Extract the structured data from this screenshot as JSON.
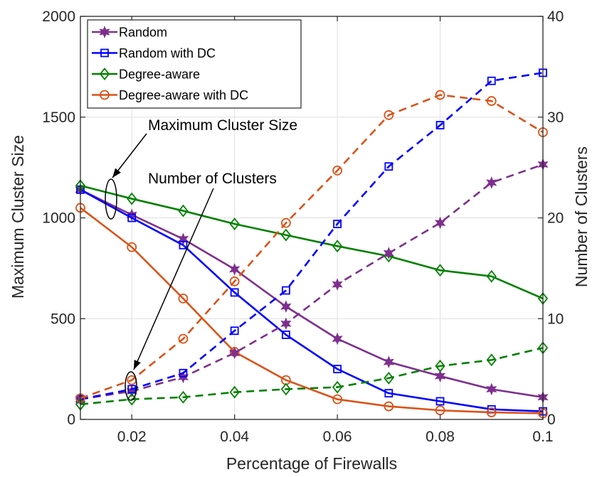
{
  "chart_data": {
    "type": "line",
    "xlabel": "Percentage of Firewalls",
    "ylabel_left": "Maximum Cluster Size",
    "ylabel_right": "Number of Clusters",
    "x": [
      0.01,
      0.02,
      0.03,
      0.04,
      0.05,
      0.06,
      0.07,
      0.08,
      0.09,
      0.1
    ],
    "xlim": [
      0.01,
      0.1
    ],
    "ylim_left": [
      0,
      2000
    ],
    "ylim_right": [
      0,
      40
    ],
    "xticks": [
      "0.02",
      "0.04",
      "0.06",
      "0.08",
      "0.1"
    ],
    "xtick_values": [
      0.02,
      0.04,
      0.06,
      0.08,
      0.1
    ],
    "yticks_left": [
      "0",
      "500",
      "1000",
      "1500",
      "2000"
    ],
    "ytick_values_left": [
      0,
      500,
      1000,
      1500,
      2000
    ],
    "yticks_right": [
      "0",
      "10",
      "20",
      "30",
      "40"
    ],
    "ytick_values_right": [
      0,
      10,
      20,
      30,
      40
    ],
    "grid": true,
    "legend_position": "top-left",
    "series": [
      {
        "name": "Random",
        "color": "#7e2f8e",
        "marker": "hexagram",
        "axis": "left",
        "dash": false,
        "values": [
          1140,
          1015,
          895,
          745,
          560,
          400,
          285,
          215,
          150,
          110
        ]
      },
      {
        "name": "Random with DC",
        "color": "#0000ff",
        "marker": "square",
        "axis": "left",
        "dash": false,
        "values": [
          1140,
          1000,
          865,
          630,
          420,
          250,
          130,
          90,
          50,
          40
        ]
      },
      {
        "name": "Degree-aware",
        "color": "#008000",
        "marker": "diamond",
        "axis": "left",
        "dash": false,
        "values": [
          1160,
          1095,
          1035,
          970,
          915,
          860,
          810,
          740,
          710,
          600
        ]
      },
      {
        "name": "Degree-aware with DC",
        "color": "#d95319",
        "marker": "circle",
        "axis": "left",
        "dash": false,
        "values": [
          1050,
          855,
          600,
          335,
          195,
          100,
          65,
          45,
          35,
          30
        ]
      },
      {
        "color": "#7e2f8e",
        "marker": "hexagram",
        "axis": "right",
        "dash": true,
        "values": [
          2,
          2.8,
          4.2,
          6.6,
          9.5,
          13.4,
          16.5,
          19.5,
          23.5,
          25.3
        ]
      },
      {
        "color": "#0000ff",
        "marker": "square",
        "axis": "right",
        "dash": true,
        "values": [
          2,
          3,
          4.6,
          8.8,
          12.8,
          19.4,
          25.1,
          29.2,
          33.6,
          34.4
        ]
      },
      {
        "color": "#008000",
        "marker": "diamond",
        "axis": "right",
        "dash": true,
        "values": [
          1.5,
          2,
          2.2,
          2.7,
          3,
          3.2,
          4.1,
          5.3,
          5.9,
          7.1
        ]
      },
      {
        "color": "#d95319",
        "marker": "circle",
        "axis": "right",
        "dash": true,
        "values": [
          2.1,
          3.9,
          8,
          13.7,
          19.5,
          24.7,
          30.2,
          32.2,
          31.6,
          28.5
        ]
      }
    ],
    "annotations": [
      {
        "text": "Maximum Cluster Size"
      },
      {
        "text": "Number of Clusters"
      }
    ]
  }
}
